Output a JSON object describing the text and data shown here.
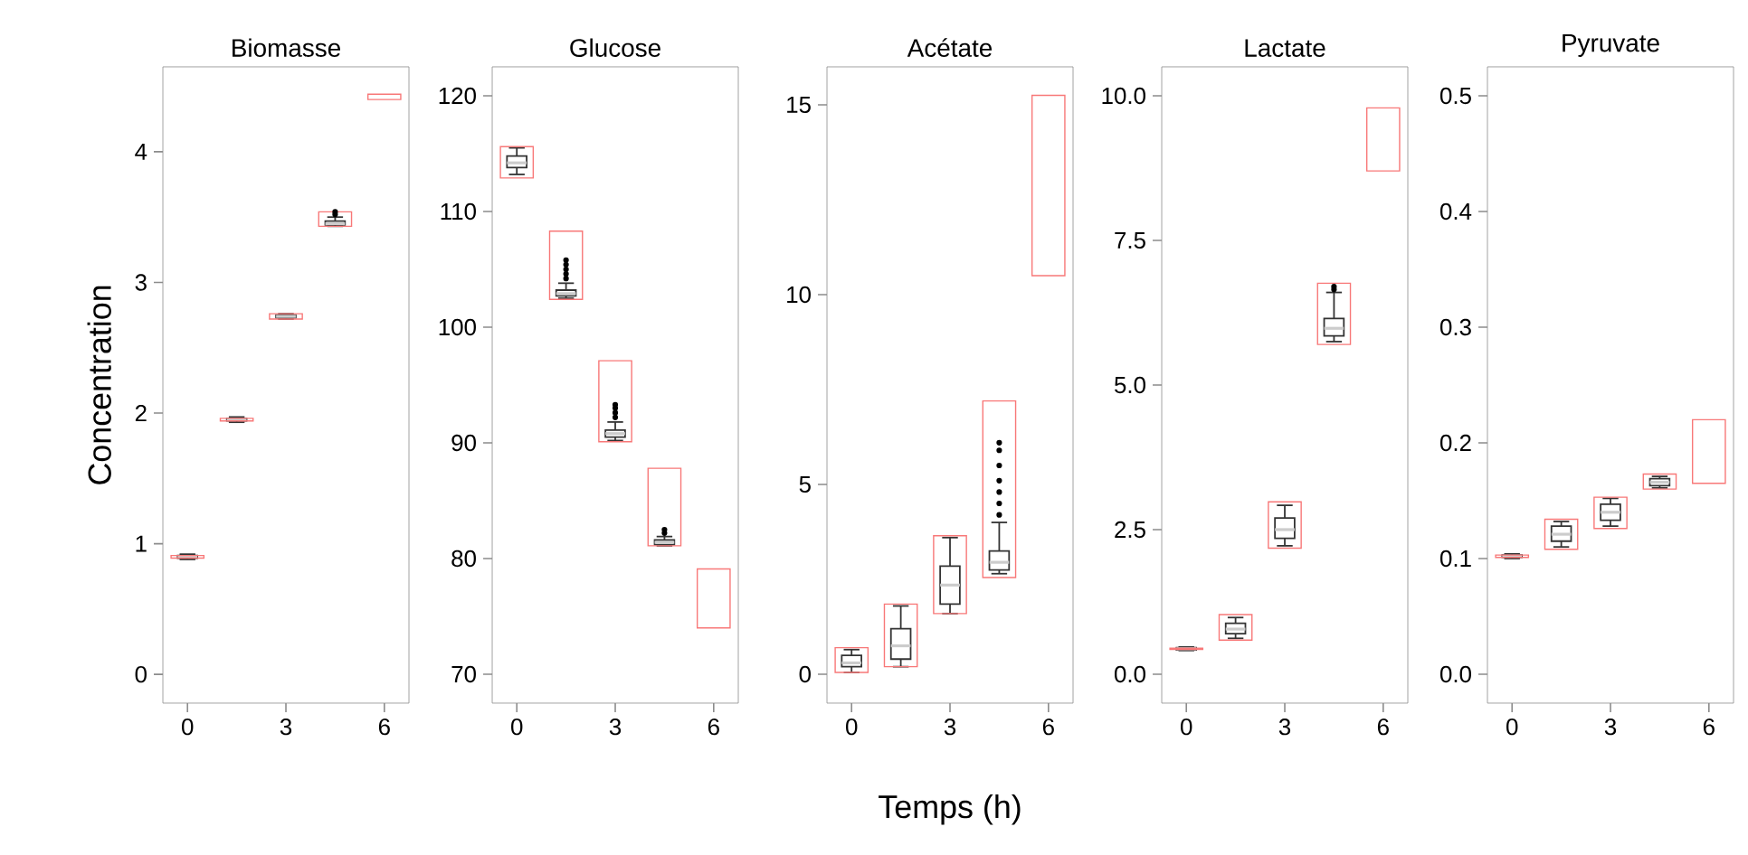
{
  "chart_data": [
    {
      "type": "box",
      "title": "Biomasse",
      "ylabel": "Concentration",
      "xlim": [
        -0.75,
        6.75
      ],
      "xticks": [
        0,
        3,
        6
      ],
      "ylim": [
        -0.22,
        4.65
      ],
      "yticks": [
        0,
        1,
        2,
        3,
        4
      ],
      "series": [
        {
          "type": "box",
          "color": "#333333",
          "x": [
            0,
            1.5,
            3,
            4.5
          ],
          "boxes": [
            {
              "low": 0.88,
              "q1": 0.89,
              "median": 0.9,
              "q3": 0.91,
              "high": 0.92
            },
            {
              "low": 1.93,
              "q1": 1.94,
              "median": 1.95,
              "q3": 1.96,
              "high": 1.97
            },
            {
              "low": 2.72,
              "q1": 2.73,
              "median": 2.74,
              "q3": 2.75,
              "high": 2.76
            },
            {
              "low": 3.43,
              "q1": 3.44,
              "median": 3.45,
              "q3": 3.47,
              "high": 3.5,
              "outliers": [
                3.52,
                3.54
              ]
            }
          ]
        },
        {
          "type": "bar",
          "color": "#f87878",
          "x": [
            0,
            1.5,
            3,
            4.5,
            6
          ],
          "base": [
            0.89,
            1.94,
            2.72,
            3.43,
            4.4
          ],
          "values": [
            0.02,
            0.02,
            0.04,
            0.11,
            0.04
          ]
        }
      ]
    },
    {
      "type": "box",
      "title": "Glucose",
      "xlim": [
        -0.75,
        6.75
      ],
      "xticks": [
        0,
        3,
        6
      ],
      "ylim": [
        67.5,
        122.5
      ],
      "yticks": [
        70,
        80,
        90,
        100,
        110,
        120
      ],
      "series": [
        {
          "type": "box",
          "color": "#333333",
          "x": [
            0,
            1.5,
            3,
            4.5
          ],
          "boxes": [
            {
              "low": 113.2,
              "q1": 113.8,
              "median": 114.2,
              "q3": 114.8,
              "high": 115.5
            },
            {
              "low": 102.5,
              "q1": 102.7,
              "median": 102.9,
              "q3": 103.2,
              "high": 103.8,
              "outliers": [
                104.2,
                104.6,
                105,
                105.4,
                105.8
              ]
            },
            {
              "low": 90.2,
              "q1": 90.5,
              "median": 90.8,
              "q3": 91.1,
              "high": 91.8,
              "outliers": [
                92.2,
                92.6,
                93,
                93.3
              ]
            },
            {
              "low": 81.1,
              "q1": 81.2,
              "median": 81.4,
              "q3": 81.6,
              "high": 81.9,
              "outliers": [
                82.2,
                82.5
              ]
            }
          ]
        },
        {
          "type": "bar",
          "color": "#f87878",
          "x": [
            0,
            1.5,
            3,
            4.5,
            6
          ],
          "base": [
            112.9,
            102.4,
            90.1,
            81.1,
            74.0
          ],
          "values": [
            2.7,
            5.9,
            7.0,
            6.7,
            5.1
          ]
        }
      ]
    },
    {
      "type": "box",
      "title": "Acétate",
      "xlabel": "Temps (h)",
      "xlim": [
        -0.75,
        6.75
      ],
      "xticks": [
        0,
        3,
        6
      ],
      "ylim": [
        -0.76,
        16.0
      ],
      "yticks": [
        0,
        5,
        10,
        15
      ],
      "series": [
        {
          "type": "box",
          "color": "#333333",
          "x": [
            0,
            1.5,
            3,
            4.5
          ],
          "boxes": [
            {
              "low": 0.05,
              "q1": 0.2,
              "median": 0.3,
              "q3": 0.5,
              "high": 0.65
            },
            {
              "low": 0.2,
              "q1": 0.4,
              "median": 0.75,
              "q3": 1.2,
              "high": 1.8
            },
            {
              "low": 1.6,
              "q1": 1.85,
              "median": 2.35,
              "q3": 2.85,
              "high": 3.6
            },
            {
              "low": 2.65,
              "q1": 2.75,
              "median": 2.95,
              "q3": 3.25,
              "high": 4.0,
              "outliers": [
                4.2,
                4.5,
                4.8,
                5.1,
                5.5,
                5.9,
                6.1
              ]
            }
          ]
        },
        {
          "type": "bar",
          "color": "#f87878",
          "x": [
            0,
            1.5,
            3,
            4.5,
            6
          ],
          "base": [
            0.05,
            0.2,
            1.6,
            2.55,
            10.5
          ],
          "values": [
            0.65,
            1.65,
            2.05,
            4.65,
            4.75
          ]
        }
      ]
    },
    {
      "type": "box",
      "title": "Lactate",
      "xlim": [
        -0.75,
        6.75
      ],
      "xticks": [
        0,
        3,
        6
      ],
      "ylim": [
        -0.5,
        10.5
      ],
      "yticks": [
        {
          "value": 0,
          "label": "0.0"
        },
        2.5,
        {
          "value": 5,
          "label": "5.0"
        },
        7.5,
        {
          "value": 10,
          "label": "10.0"
        }
      ],
      "series": [
        {
          "type": "box",
          "color": "#333333",
          "x": [
            0,
            1.5,
            3,
            4.5
          ],
          "boxes": [
            {
              "low": 0.41,
              "q1": 0.42,
              "median": 0.44,
              "q3": 0.46,
              "high": 0.47
            },
            {
              "low": 0.62,
              "q1": 0.7,
              "median": 0.78,
              "q3": 0.88,
              "high": 0.98
            },
            {
              "low": 2.22,
              "q1": 2.35,
              "median": 2.5,
              "q3": 2.7,
              "high": 2.92
            },
            {
              "low": 5.75,
              "q1": 5.85,
              "median": 5.98,
              "q3": 6.15,
              "high": 6.6,
              "outliers": [
                6.65,
                6.7
              ]
            }
          ]
        },
        {
          "type": "bar",
          "color": "#f87878",
          "x": [
            0,
            1.5,
            3,
            4.5,
            6
          ],
          "base": [
            0.43,
            0.59,
            2.18,
            5.7,
            8.7
          ],
          "values": [
            0.02,
            0.44,
            0.8,
            1.06,
            1.09
          ]
        }
      ]
    },
    {
      "type": "box",
      "title": "Pyruvate",
      "xlim": [
        -0.75,
        6.75
      ],
      "xticks": [
        0,
        3,
        6
      ],
      "ylim": [
        -0.025,
        0.525
      ],
      "yticks": [
        {
          "value": 0,
          "label": "0.0"
        },
        0.1,
        0.2,
        0.3,
        0.4,
        0.5
      ],
      "series": [
        {
          "type": "box",
          "color": "#333333",
          "x": [
            0,
            1.5,
            3,
            4.5
          ],
          "boxes": [
            {
              "low": 0.1,
              "q1": 0.101,
              "median": 0.102,
              "q3": 0.103,
              "high": 0.104
            },
            {
              "low": 0.11,
              "q1": 0.115,
              "median": 0.121,
              "q3": 0.128,
              "high": 0.132
            },
            {
              "low": 0.128,
              "q1": 0.133,
              "median": 0.14,
              "q3": 0.147,
              "high": 0.152
            },
            {
              "low": 0.161,
              "q1": 0.163,
              "median": 0.166,
              "q3": 0.169,
              "high": 0.171
            }
          ]
        },
        {
          "type": "bar",
          "color": "#f87878",
          "x": [
            0,
            1.5,
            3,
            4.5,
            6
          ],
          "base": [
            0.101,
            0.108,
            0.126,
            0.16,
            0.165
          ],
          "values": [
            0.002,
            0.026,
            0.027,
            0.013,
            0.055
          ]
        }
      ]
    }
  ]
}
